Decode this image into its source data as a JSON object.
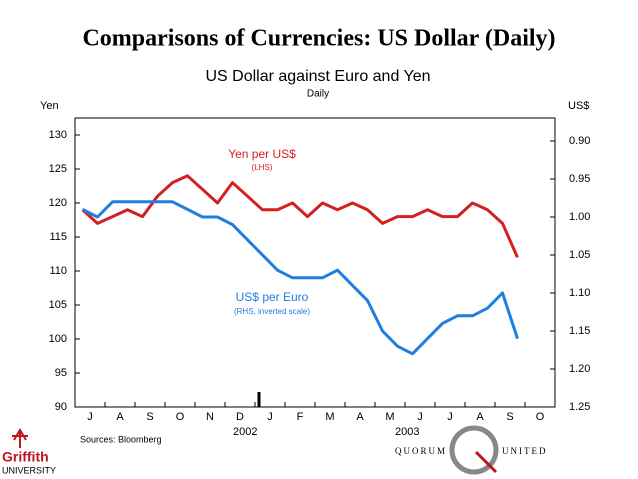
{
  "slide_title": "Comparisons of Currencies: US Dollar (Daily)",
  "chart_data": {
    "type": "line",
    "title": "US Dollar against Euro and Yen",
    "subtitle": "Daily",
    "y_label": "Yen",
    "y2_label": "US$",
    "categories": [
      "J",
      null,
      "A",
      null,
      "S",
      null,
      "O",
      null,
      "N",
      null,
      "D",
      null,
      "J",
      null,
      "F",
      null,
      "M",
      null,
      "A",
      null,
      "M",
      null,
      "J",
      null,
      "J",
      null,
      "A",
      null,
      "S",
      null,
      "O",
      null
    ],
    "years": [
      "2002",
      "2003"
    ],
    "series": [
      {
        "name": "Yen per US$",
        "note": "(LHS)",
        "color": "#d42020",
        "axis": "y",
        "values": [
          119,
          117,
          118,
          119,
          118,
          121,
          123,
          124,
          122,
          120,
          123,
          121,
          119,
          119,
          120,
          118,
          120,
          119,
          120,
          119,
          117,
          118,
          118,
          119,
          118,
          118,
          120,
          119,
          117,
          112,
          null,
          null
        ]
      },
      {
        "name": "US$ per Euro",
        "note": "(RHS, inverted scale)",
        "color": "#1e7fe0",
        "axis": "y2",
        "values": [
          0.99,
          1.0,
          0.98,
          0.98,
          0.98,
          0.98,
          0.98,
          0.99,
          1.0,
          1.0,
          1.01,
          1.03,
          1.05,
          1.07,
          1.08,
          1.08,
          1.08,
          1.07,
          1.09,
          1.11,
          1.15,
          1.17,
          1.18,
          1.16,
          1.14,
          1.13,
          1.13,
          1.12,
          1.1,
          1.16,
          null,
          null
        ]
      }
    ],
    "ylim": [
      90,
      130
    ],
    "yticks": [
      90,
      95,
      100,
      105,
      110,
      115,
      120,
      125,
      130
    ],
    "y2lim": [
      1.25,
      0.9
    ],
    "y2ticks": [
      {
        "value": 1.25,
        "label": "1.25"
      },
      {
        "value": 1.2,
        "label": "1.20"
      },
      {
        "value": 1.15,
        "label": "1.15"
      },
      {
        "value": 1.1,
        "label": "1.10"
      },
      {
        "value": 1.05,
        "label": "1.05"
      },
      {
        "value": 1.0,
        "label": "1.00"
      },
      {
        "value": 0.95,
        "label": "0.95"
      },
      {
        "value": 0.9,
        "label": "0.90"
      }
    ],
    "source": "Sources: Bloomberg"
  },
  "logos": {
    "left": [
      "Griffith",
      "UNIVERSITY"
    ],
    "right": [
      "QUORUM",
      "UNITED"
    ]
  }
}
